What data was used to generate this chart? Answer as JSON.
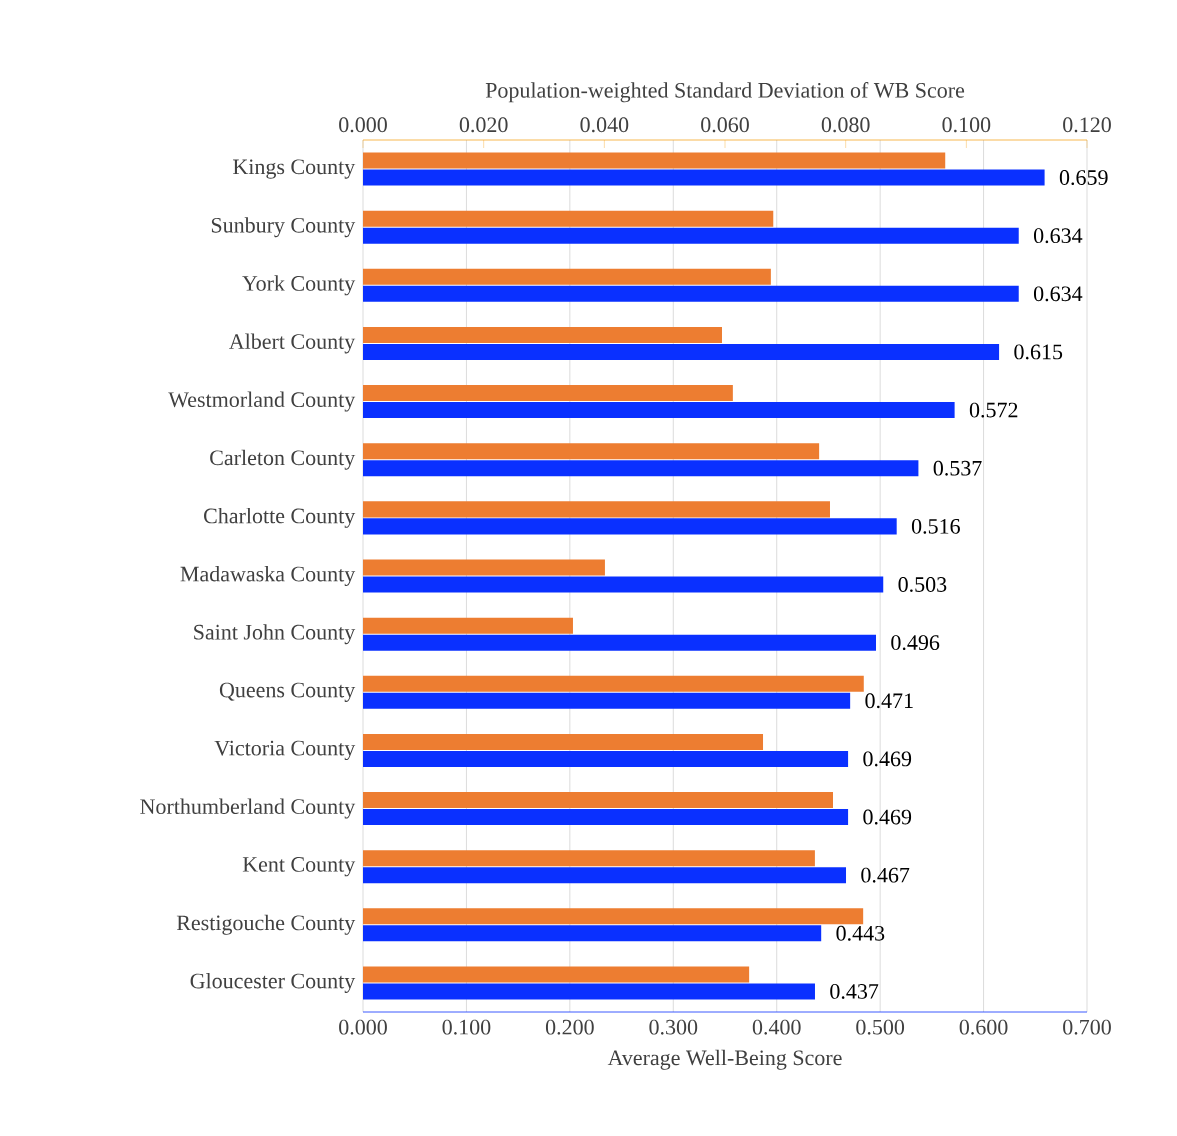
{
  "chart_data": {
    "type": "bar",
    "orientation": "horizontal",
    "grid": "x",
    "categories": [
      "Kings County",
      "Sunbury County",
      "York County",
      "Albert County",
      "Westmorland County",
      "Carleton County",
      "Charlotte County",
      "Madawaska County",
      "Saint John County",
      "Queens County",
      "Victoria County",
      "Northumberland County",
      "Kent County",
      "Restigouche County",
      "Gloucester County"
    ],
    "xlabel": "Average Well-Being Score",
    "x2label": "Population-weighted Standard Deviation of WB Score",
    "xlim": [
      0,
      0.7
    ],
    "xticks": [
      {
        "value": 0,
        "label": "0.000"
      },
      {
        "value": 0.1,
        "label": "0.100"
      },
      {
        "value": 0.2,
        "label": "0.200"
      },
      {
        "value": 0.3,
        "label": "0.300"
      },
      {
        "value": 0.4,
        "label": "0.400"
      },
      {
        "value": 0.5,
        "label": "0.500"
      },
      {
        "value": 0.6,
        "label": "0.600"
      },
      {
        "value": 0.7,
        "label": "0.700"
      }
    ],
    "x2lim": [
      0,
      0.12
    ],
    "x2ticks": [
      {
        "value": 0,
        "label": "0.000"
      },
      {
        "value": 0.02,
        "label": "0.020"
      },
      {
        "value": 0.04,
        "label": "0.040"
      },
      {
        "value": 0.06,
        "label": "0.060"
      },
      {
        "value": 0.08,
        "label": "0.080"
      },
      {
        "value": 0.1,
        "label": "0.100"
      },
      {
        "value": 0.12,
        "label": "0.120"
      }
    ],
    "series": [
      {
        "color": "#0a30ff",
        "values": [
          0.659,
          0.634,
          0.634,
          0.615,
          0.572,
          0.537,
          0.516,
          0.503,
          0.496,
          0.471,
          0.469,
          0.469,
          0.467,
          0.443,
          0.437
        ],
        "value_labels": [
          "0.659",
          "0.634",
          "0.634",
          "0.615",
          "0.572",
          "0.537",
          "0.516",
          "0.503",
          "0.496",
          "0.471",
          "0.469",
          "0.469",
          "0.467",
          "0.443",
          "0.437"
        ]
      },
      {
        "color": "#ed7d31",
        "axis": "x2",
        "values": [
          0.0965,
          0.068,
          0.0676,
          0.0595,
          0.0613,
          0.0756,
          0.0774,
          0.0401,
          0.0348,
          0.083,
          0.0663,
          0.0779,
          0.0749,
          0.0829,
          0.064
        ]
      }
    ]
  }
}
